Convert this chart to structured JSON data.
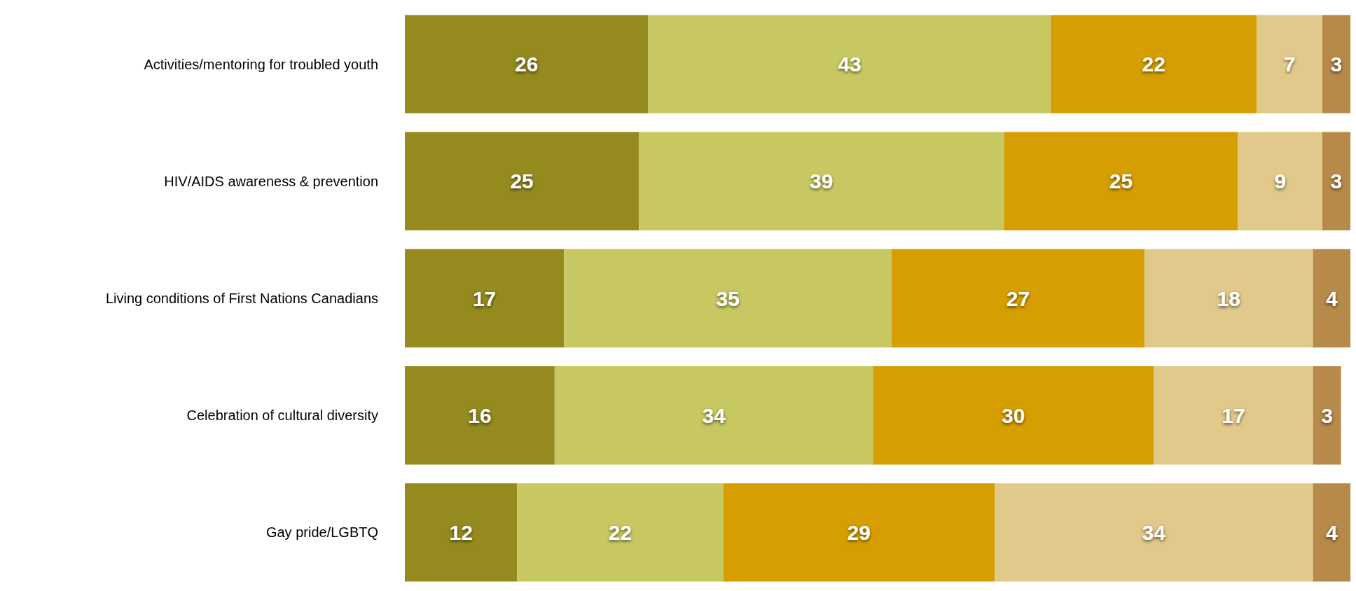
{
  "chart_data": {
    "type": "bar",
    "orientation": "horizontal",
    "stacked": true,
    "data_labels": true,
    "categories": [
      "Activities/mentoring for troubled youth",
      "HIV/AIDS awareness & prevention",
      "Living conditions of First Nations Canadians",
      "Celebration of cultural diversity",
      "Gay pride/LGBTQ"
    ],
    "series": [
      {
        "color": "#948a1e",
        "values": [
          26,
          25,
          17,
          16,
          12
        ]
      },
      {
        "color": "#c8c862",
        "values": [
          43,
          39,
          35,
          34,
          22
        ]
      },
      {
        "color": "#d69e00",
        "values": [
          22,
          25,
          27,
          30,
          29
        ]
      },
      {
        "color": "#e0c98a",
        "values": [
          7,
          9,
          18,
          17,
          34
        ]
      },
      {
        "color": "#b88a4a",
        "values": [
          3,
          3,
          4,
          3,
          4
        ]
      }
    ]
  }
}
